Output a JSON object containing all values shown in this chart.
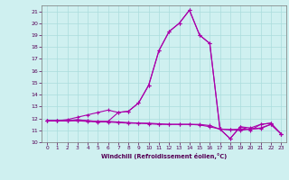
{
  "xlabel": "Windchill (Refroidissement éolien,°C)",
  "xlim": [
    -0.5,
    23.5
  ],
  "ylim": [
    10,
    21.5
  ],
  "yticks": [
    10,
    11,
    12,
    13,
    14,
    15,
    16,
    17,
    18,
    19,
    20,
    21
  ],
  "xticks": [
    0,
    1,
    2,
    3,
    4,
    5,
    6,
    7,
    8,
    9,
    10,
    11,
    12,
    13,
    14,
    15,
    16,
    17,
    18,
    19,
    20,
    21,
    22,
    23
  ],
  "background_color": "#cff0f0",
  "grid_color": "#aadddd",
  "line_color": "#aa00aa",
  "series": [
    [
      11.8,
      11.8,
      11.8,
      11.8,
      11.75,
      11.7,
      11.7,
      11.65,
      11.6,
      11.6,
      11.55,
      11.5,
      11.5,
      11.5,
      11.5,
      11.45,
      11.3,
      11.1,
      11.05,
      11.0,
      11.1,
      11.15,
      11.5,
      10.7
    ],
    [
      11.8,
      11.8,
      11.8,
      11.9,
      11.8,
      11.75,
      11.75,
      12.5,
      12.6,
      13.3,
      14.8,
      17.7,
      19.3,
      20.0,
      21.1,
      19.0,
      18.3,
      11.1,
      10.3,
      11.3,
      11.0,
      11.5,
      11.6,
      10.7
    ],
    [
      11.8,
      11.8,
      11.8,
      11.85,
      11.8,
      11.75,
      11.75,
      11.7,
      11.65,
      11.6,
      11.6,
      11.55,
      11.5,
      11.5,
      11.5,
      11.5,
      11.4,
      11.1,
      11.05,
      11.1,
      11.1,
      11.2,
      11.5,
      10.7
    ],
    [
      11.8,
      11.8,
      11.9,
      12.1,
      12.3,
      12.5,
      12.7,
      12.5,
      12.6,
      13.3,
      14.8,
      17.7,
      19.3,
      20.0,
      21.1,
      19.0,
      18.3,
      11.1,
      10.3,
      11.3,
      11.2,
      11.5,
      11.6,
      10.7
    ]
  ],
  "markers": [
    "+",
    "+",
    "+",
    "+"
  ],
  "lw": 0.8
}
